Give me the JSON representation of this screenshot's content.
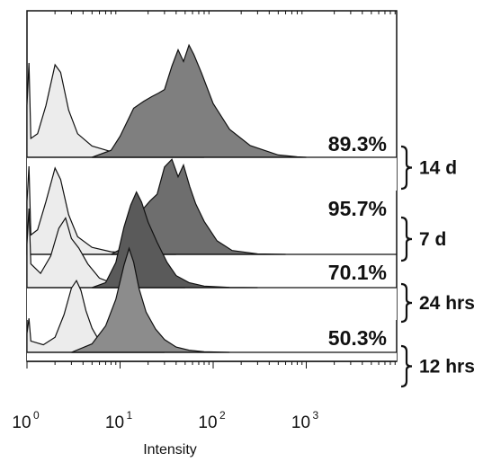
{
  "chart_data": {
    "type": "area",
    "xlabel": "Intensity",
    "x_scale": "log",
    "xlim": [
      1,
      10000
    ],
    "x_ticks": [
      {
        "base": "10",
        "exp": "0",
        "value": 1
      },
      {
        "base": "10",
        "exp": "1",
        "value": 10
      },
      {
        "base": "10",
        "exp": "2",
        "value": 100
      },
      {
        "base": "10",
        "exp": "3",
        "value": 1000
      }
    ],
    "groups": [
      {
        "label": "14 d",
        "percent_label": "89.3%",
        "control": {
          "x": [
            1,
            1.05,
            1.1,
            1.3,
            1.6,
            2.0,
            2.3,
            2.8,
            3.5,
            5,
            8,
            15,
            30,
            80
          ],
          "y": [
            0.55,
            1.0,
            0.2,
            0.25,
            0.55,
            0.98,
            0.9,
            0.5,
            0.25,
            0.12,
            0.06,
            0.03,
            0.01,
            0
          ]
        },
        "sample": {
          "x": [
            5,
            8,
            10,
            14,
            18,
            22,
            26,
            30,
            36,
            42,
            48,
            55,
            62,
            75,
            100,
            150,
            250,
            500,
            800,
            1000
          ],
          "y": [
            0,
            0.06,
            0.18,
            0.42,
            0.48,
            0.52,
            0.55,
            0.58,
            0.78,
            0.92,
            0.82,
            0.96,
            0.88,
            0.72,
            0.46,
            0.24,
            0.1,
            0.02,
            0.004,
            0
          ]
        }
      },
      {
        "label": "7 d",
        "percent_label": "95.7%",
        "control": {
          "x": [
            1,
            1.05,
            1.1,
            1.3,
            1.6,
            2.0,
            2.3,
            2.8,
            3.5,
            5,
            8,
            15,
            40
          ],
          "y": [
            0.6,
            1.0,
            0.22,
            0.28,
            0.6,
            0.98,
            0.85,
            0.45,
            0.2,
            0.08,
            0.03,
            0.01,
            0
          ]
        },
        "sample": {
          "x": [
            8,
            10,
            13,
            17,
            21,
            25,
            30,
            36,
            42,
            48,
            56,
            65,
            80,
            110,
            160,
            300,
            600
          ],
          "y": [
            0,
            0.05,
            0.2,
            0.45,
            0.55,
            0.62,
            0.9,
            0.98,
            0.8,
            0.92,
            0.7,
            0.52,
            0.34,
            0.14,
            0.04,
            0.005,
            0
          ]
        }
      },
      {
        "label": "24 hrs",
        "percent_label": "70.1%",
        "control": {
          "x": [
            1,
            1.05,
            1.1,
            1.4,
            1.8,
            2.2,
            2.6,
            3.0,
            3.6,
            4.5,
            6,
            9,
            20,
            50
          ],
          "y": [
            0.55,
            1.0,
            0.3,
            0.18,
            0.4,
            0.75,
            0.88,
            0.62,
            0.5,
            0.3,
            0.12,
            0.04,
            0.01,
            0
          ]
        },
        "sample": {
          "x": [
            5,
            7,
            9,
            11,
            13,
            15,
            17,
            20,
            25,
            32,
            40,
            55,
            80,
            150,
            300
          ],
          "y": [
            0,
            0.05,
            0.25,
            0.6,
            0.82,
            0.95,
            0.85,
            0.65,
            0.45,
            0.25,
            0.12,
            0.05,
            0.015,
            0.003,
            0
          ]
        }
      },
      {
        "label": "12 hrs",
        "percent_label": "50.3%",
        "control": {
          "x": [
            1,
            1.05,
            1.1,
            1.5,
            2.0,
            2.5,
            3.0,
            3.4,
            3.8,
            4.3,
            5,
            6,
            8,
            12,
            30
          ],
          "y": [
            0.25,
            0.45,
            0.15,
            0.1,
            0.2,
            0.5,
            0.85,
            0.95,
            0.82,
            0.55,
            0.32,
            0.15,
            0.05,
            0.01,
            0
          ]
        },
        "sample": {
          "x": [
            3,
            5,
            7,
            9,
            11,
            12.5,
            14,
            16,
            19,
            24,
            30,
            40,
            55,
            80,
            150
          ],
          "y": [
            0,
            0.08,
            0.25,
            0.5,
            0.82,
            0.98,
            0.85,
            0.6,
            0.38,
            0.22,
            0.12,
            0.05,
            0.02,
            0.005,
            0
          ]
        }
      }
    ],
    "colors": {
      "control": "#ececec",
      "sample_shades": [
        "#7f7f7f",
        "#6e6e6e",
        "#5a5a5a",
        "#8c8c8c"
      ],
      "line": "#111111"
    }
  }
}
